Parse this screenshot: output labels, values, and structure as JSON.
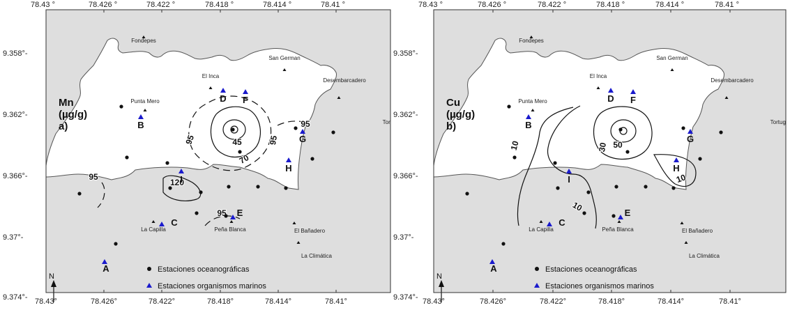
{
  "axes": {
    "top_ticks": [
      "78.43 °",
      "78.426 °",
      "78.422 °",
      "78.418 °",
      "78.414 °",
      "78.41 °"
    ],
    "bottom_ticks": [
      "78.43°",
      "78.426°",
      "78.422°",
      "78.418°",
      "78.414°",
      "78.41°"
    ],
    "y_ticks": [
      "9.358°-",
      "9.362°-",
      "9.366°-",
      "9.37°-",
      "9.374°-"
    ]
  },
  "panels": [
    {
      "id": "mn",
      "title_lines": [
        "Mn",
        "(µg/g)",
        "a)"
      ],
      "contour_labels": [
        "95",
        "95",
        "95",
        "95",
        "95",
        "45",
        "70",
        "120"
      ]
    },
    {
      "id": "cu",
      "title_lines": [
        "Cu",
        "(µg/g)",
        "b)"
      ],
      "contour_labels": [
        "10",
        "10",
        "10",
        "30",
        "50"
      ]
    }
  ],
  "places": {
    "fondepes": "Fondepes",
    "el_inca": "El Inca",
    "san_german": "San German",
    "desembarcadero": "Desembarcadero",
    "punta_mero": "Punta Mero",
    "tortugas": "Tortugas",
    "la_capilla": "La Capilla",
    "pena_blanca": "Peña Blanca",
    "el_banadero": "El Bañadero",
    "la_climatica": "La Climática"
  },
  "stations": {
    "A": "A",
    "B": "B",
    "C": "C",
    "D": "D",
    "E": "E",
    "F": "F",
    "G": "G",
    "H": "H",
    "I": "I"
  },
  "legend": {
    "oceanographic": "Estaciones oceanográficas",
    "marine_organisms": "Estaciones organismos marinos"
  },
  "north": "N",
  "colors": {
    "land": "#dedede",
    "coast": "#555555",
    "station_marker": "#1a1acc",
    "oceanographic_marker": "#111111"
  }
}
